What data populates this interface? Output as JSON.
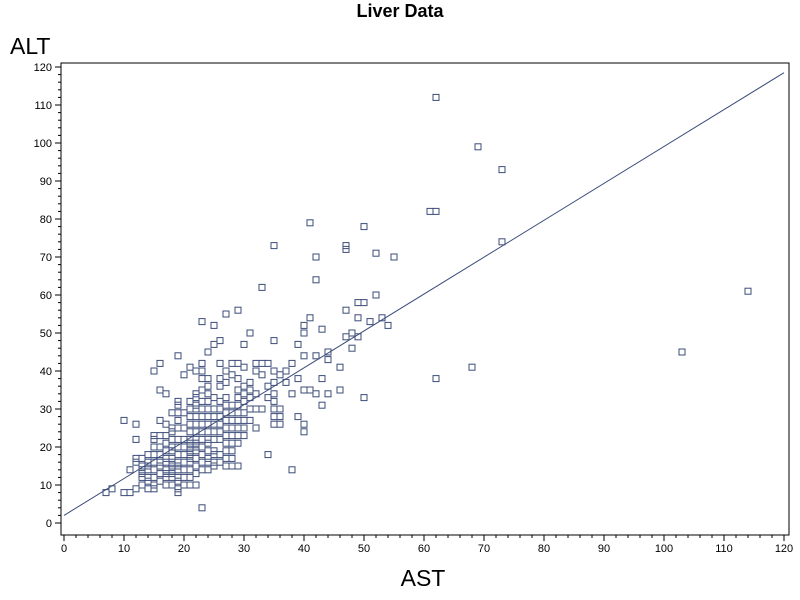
{
  "chart_data": {
    "type": "scatter",
    "title": "Liver Data",
    "xlabel": "AST",
    "ylabel": "ALT",
    "xlim": [
      0,
      120
    ],
    "ylim": [
      0,
      120
    ],
    "xticks": [
      0,
      10,
      20,
      30,
      40,
      50,
      60,
      70,
      80,
      90,
      100,
      110,
      120
    ],
    "yticks": [
      0,
      10,
      20,
      30,
      40,
      50,
      60,
      70,
      80,
      90,
      100,
      110,
      120
    ],
    "grid": false,
    "legend": "none",
    "marker": "open-square",
    "marker_color": "#3C4C7A",
    "line_color": "#3C4C7A",
    "fit_line": {
      "x": [
        0,
        120
      ],
      "y": [
        2,
        118.5
      ]
    },
    "points": [
      [
        7,
        8
      ],
      [
        8,
        9
      ],
      [
        10,
        8
      ],
      [
        11,
        8
      ],
      [
        10,
        27
      ],
      [
        11,
        14
      ],
      [
        12,
        26
      ],
      [
        12,
        22
      ],
      [
        12,
        17
      ],
      [
        12,
        9
      ],
      [
        12,
        16
      ],
      [
        13,
        17
      ],
      [
        13,
        15
      ],
      [
        13,
        14
      ],
      [
        13,
        12
      ],
      [
        13,
        10
      ],
      [
        13,
        13
      ],
      [
        14,
        9
      ],
      [
        14,
        12
      ],
      [
        14,
        15
      ],
      [
        14,
        18
      ],
      [
        14,
        16
      ],
      [
        14,
        11
      ],
      [
        14,
        14
      ],
      [
        15,
        9
      ],
      [
        15,
        10
      ],
      [
        15,
        12
      ],
      [
        15,
        14
      ],
      [
        15,
        16
      ],
      [
        15,
        20
      ],
      [
        15,
        22
      ],
      [
        15,
        23
      ],
      [
        15,
        40
      ],
      [
        15,
        18
      ],
      [
        16,
        11
      ],
      [
        16,
        13
      ],
      [
        16,
        15
      ],
      [
        16,
        16
      ],
      [
        16,
        18
      ],
      [
        16,
        20
      ],
      [
        16,
        23
      ],
      [
        16,
        35
      ],
      [
        16,
        42
      ],
      [
        16,
        27
      ],
      [
        17,
        10
      ],
      [
        17,
        12
      ],
      [
        17,
        13
      ],
      [
        17,
        14
      ],
      [
        17,
        16
      ],
      [
        17,
        17
      ],
      [
        17,
        19
      ],
      [
        17,
        21
      ],
      [
        17,
        23
      ],
      [
        17,
        34
      ],
      [
        17,
        26
      ],
      [
        18,
        10
      ],
      [
        18,
        12
      ],
      [
        18,
        13
      ],
      [
        18,
        14
      ],
      [
        18,
        15
      ],
      [
        18,
        16
      ],
      [
        18,
        17
      ],
      [
        18,
        19
      ],
      [
        18,
        20
      ],
      [
        18,
        22
      ],
      [
        18,
        24
      ],
      [
        18,
        25
      ],
      [
        18,
        29
      ],
      [
        19,
        8
      ],
      [
        19,
        9
      ],
      [
        19,
        11
      ],
      [
        19,
        12
      ],
      [
        19,
        14
      ],
      [
        19,
        15
      ],
      [
        19,
        16
      ],
      [
        19,
        18
      ],
      [
        19,
        20
      ],
      [
        19,
        22
      ],
      [
        19,
        25
      ],
      [
        19,
        27
      ],
      [
        19,
        29
      ],
      [
        19,
        31
      ],
      [
        19,
        32
      ],
      [
        19,
        44
      ],
      [
        20,
        10
      ],
      [
        20,
        12
      ],
      [
        20,
        14
      ],
      [
        20,
        16
      ],
      [
        20,
        18
      ],
      [
        20,
        20
      ],
      [
        20,
        22
      ],
      [
        20,
        25
      ],
      [
        20,
        29
      ],
      [
        20,
        39
      ],
      [
        21,
        10
      ],
      [
        21,
        12
      ],
      [
        21,
        14
      ],
      [
        21,
        16
      ],
      [
        21,
        17
      ],
      [
        21,
        18
      ],
      [
        21,
        19
      ],
      [
        21,
        20
      ],
      [
        21,
        21
      ],
      [
        21,
        22
      ],
      [
        21,
        24
      ],
      [
        21,
        26
      ],
      [
        21,
        28
      ],
      [
        21,
        30
      ],
      [
        21,
        32
      ],
      [
        21,
        41
      ],
      [
        22,
        10
      ],
      [
        22,
        13
      ],
      [
        22,
        15
      ],
      [
        22,
        17
      ],
      [
        22,
        19
      ],
      [
        22,
        20
      ],
      [
        22,
        21
      ],
      [
        22,
        22
      ],
      [
        22,
        24
      ],
      [
        22,
        26
      ],
      [
        22,
        28
      ],
      [
        22,
        30
      ],
      [
        22,
        31
      ],
      [
        22,
        33
      ],
      [
        22,
        34
      ],
      [
        22,
        40
      ],
      [
        23,
        4
      ],
      [
        23,
        14
      ],
      [
        23,
        16
      ],
      [
        23,
        18
      ],
      [
        23,
        20
      ],
      [
        23,
        22
      ],
      [
        23,
        24
      ],
      [
        23,
        26
      ],
      [
        23,
        28
      ],
      [
        23,
        30
      ],
      [
        23,
        32
      ],
      [
        23,
        35
      ],
      [
        23,
        38
      ],
      [
        23,
        40
      ],
      [
        23,
        42
      ],
      [
        23,
        53
      ],
      [
        24,
        14
      ],
      [
        24,
        16
      ],
      [
        24,
        17
      ],
      [
        24,
        19
      ],
      [
        24,
        21
      ],
      [
        24,
        22
      ],
      [
        24,
        24
      ],
      [
        24,
        26
      ],
      [
        24,
        28
      ],
      [
        24,
        30
      ],
      [
        24,
        32
      ],
      [
        24,
        34
      ],
      [
        24,
        36
      ],
      [
        24,
        38
      ],
      [
        24,
        45
      ],
      [
        25,
        15
      ],
      [
        25,
        16
      ],
      [
        25,
        18
      ],
      [
        25,
        19
      ],
      [
        25,
        22
      ],
      [
        25,
        24
      ],
      [
        25,
        26
      ],
      [
        25,
        28
      ],
      [
        25,
        30
      ],
      [
        25,
        33
      ],
      [
        25,
        47
      ],
      [
        25,
        52
      ],
      [
        26,
        16
      ],
      [
        26,
        18
      ],
      [
        26,
        22
      ],
      [
        26,
        24
      ],
      [
        26,
        26
      ],
      [
        26,
        28
      ],
      [
        26,
        30
      ],
      [
        26,
        32
      ],
      [
        26,
        36
      ],
      [
        26,
        38
      ],
      [
        26,
        42
      ],
      [
        26,
        48
      ],
      [
        27,
        15
      ],
      [
        27,
        17
      ],
      [
        27,
        19
      ],
      [
        27,
        21
      ],
      [
        27,
        23
      ],
      [
        27,
        25
      ],
      [
        27,
        27
      ],
      [
        27,
        29
      ],
      [
        27,
        31
      ],
      [
        27,
        33
      ],
      [
        27,
        37
      ],
      [
        27,
        40
      ],
      [
        27,
        55
      ],
      [
        28,
        15
      ],
      [
        28,
        17
      ],
      [
        28,
        19
      ],
      [
        28,
        21
      ],
      [
        28,
        23
      ],
      [
        28,
        25
      ],
      [
        28,
        27
      ],
      [
        28,
        29
      ],
      [
        28,
        31
      ],
      [
        28,
        39
      ],
      [
        28,
        42
      ],
      [
        29,
        15
      ],
      [
        29,
        21
      ],
      [
        29,
        23
      ],
      [
        29,
        25
      ],
      [
        29,
        27
      ],
      [
        29,
        29
      ],
      [
        29,
        31
      ],
      [
        29,
        33
      ],
      [
        29,
        35
      ],
      [
        29,
        38
      ],
      [
        29,
        42
      ],
      [
        29,
        56
      ],
      [
        30,
        23
      ],
      [
        30,
        25
      ],
      [
        30,
        27
      ],
      [
        30,
        29
      ],
      [
        30,
        32
      ],
      [
        30,
        34
      ],
      [
        30,
        36
      ],
      [
        30,
        41
      ],
      [
        30,
        47
      ],
      [
        31,
        27
      ],
      [
        31,
        30
      ],
      [
        31,
        33
      ],
      [
        31,
        35
      ],
      [
        31,
        37
      ],
      [
        31,
        50
      ],
      [
        32,
        25
      ],
      [
        32,
        30
      ],
      [
        32,
        34
      ],
      [
        32,
        40
      ],
      [
        32,
        42
      ],
      [
        33,
        30
      ],
      [
        33,
        39
      ],
      [
        33,
        42
      ],
      [
        33,
        62
      ],
      [
        34,
        18
      ],
      [
        34,
        33
      ],
      [
        34,
        36
      ],
      [
        34,
        42
      ],
      [
        35,
        26
      ],
      [
        35,
        28
      ],
      [
        35,
        30
      ],
      [
        35,
        32
      ],
      [
        35,
        34
      ],
      [
        35,
        37
      ],
      [
        35,
        40
      ],
      [
        35,
        48
      ],
      [
        35,
        73
      ],
      [
        36,
        26
      ],
      [
        36,
        28
      ],
      [
        36,
        30
      ],
      [
        36,
        39
      ],
      [
        37,
        37
      ],
      [
        37,
        40
      ],
      [
        38,
        14
      ],
      [
        38,
        34
      ],
      [
        38,
        42
      ],
      [
        39,
        28
      ],
      [
        39,
        38
      ],
      [
        39,
        47
      ],
      [
        40,
        24
      ],
      [
        40,
        26
      ],
      [
        40,
        35
      ],
      [
        40,
        44
      ],
      [
        40,
        50
      ],
      [
        40,
        52
      ],
      [
        41,
        35
      ],
      [
        41,
        54
      ],
      [
        41,
        79
      ],
      [
        42,
        34
      ],
      [
        42,
        44
      ],
      [
        42,
        64
      ],
      [
        42,
        70
      ],
      [
        43,
        31
      ],
      [
        43,
        38
      ],
      [
        43,
        51
      ],
      [
        44,
        34
      ],
      [
        44,
        43
      ],
      [
        44,
        45
      ],
      [
        46,
        35
      ],
      [
        46,
        41
      ],
      [
        47,
        49
      ],
      [
        47,
        56
      ],
      [
        47,
        72
      ],
      [
        47,
        73
      ],
      [
        48,
        46
      ],
      [
        48,
        50
      ],
      [
        49,
        49
      ],
      [
        49,
        54
      ],
      [
        49,
        58
      ],
      [
        50,
        33
      ],
      [
        50,
        58
      ],
      [
        50,
        78
      ],
      [
        51,
        53
      ],
      [
        52,
        60
      ],
      [
        52,
        71
      ],
      [
        53,
        54
      ],
      [
        54,
        52
      ],
      [
        55,
        70
      ],
      [
        61,
        82
      ],
      [
        62,
        82
      ],
      [
        62,
        38
      ],
      [
        62,
        112
      ],
      [
        68,
        41
      ],
      [
        69,
        99
      ],
      [
        73,
        93
      ],
      [
        73,
        74
      ],
      [
        103,
        45
      ],
      [
        114,
        61
      ]
    ]
  }
}
